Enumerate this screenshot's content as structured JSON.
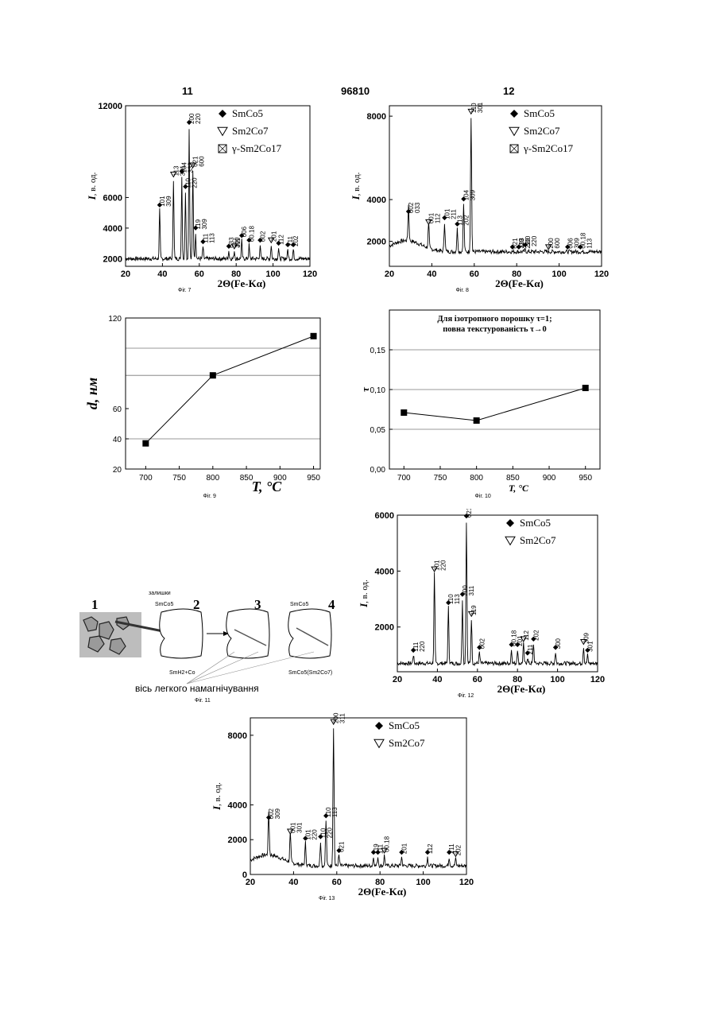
{
  "header": {
    "left": "11",
    "center": "96810",
    "right": "12"
  },
  "xrd_common": {
    "ylabel_prefix": "I",
    "ylabel_units": ", в. од.",
    "xlabel": "2Θ(Fe-Kα)",
    "legend": {
      "smco5": "SmCo5",
      "sm2co7": "Sm2Co7",
      "sm2co17": "γ-Sm2Co17"
    }
  },
  "chart_data": [
    {
      "id": "fig7",
      "type": "line",
      "caption": "Фіг. 7",
      "xlim": [
        20,
        120
      ],
      "ylim": [
        1500,
        12000
      ],
      "yticks": [
        2000,
        4000,
        6000,
        12000
      ],
      "xticks": [
        20,
        40,
        60,
        80,
        100,
        120
      ],
      "peaks": [
        [
          38.5,
          5200
        ],
        [
          46,
          7200
        ],
        [
          50.5,
          7400
        ],
        [
          52.5,
          6400
        ],
        [
          54.5,
          10600
        ],
        [
          56.5,
          7800
        ],
        [
          58,
          3700
        ],
        [
          62,
          2800
        ],
        [
          76,
          2500
        ],
        [
          79,
          2500
        ],
        [
          83,
          3200
        ],
        [
          87,
          2900
        ],
        [
          93,
          2900
        ],
        [
          99,
          2900
        ],
        [
          103,
          2700
        ],
        [
          108,
          2600
        ],
        [
          111,
          2600
        ]
      ],
      "labels": [
        "101",
        "113",
        "104",
        "110",
        "200",
        "021",
        "119",
        "111",
        "033",
        "300",
        "006",
        "00.18",
        "002",
        "201",
        "112",
        "211",
        "202",
        "309",
        "301",
        "333",
        "220",
        "220",
        "600",
        "309",
        "113",
        "311"
      ],
      "baseline": 2000
    },
    {
      "id": "fig8",
      "type": "line",
      "caption": "Фіг. 8",
      "xlim": [
        20,
        120
      ],
      "ylim": [
        800,
        8500
      ],
      "yticks": [
        2000,
        4000,
        8000
      ],
      "xticks": [
        20,
        40,
        60,
        80,
        100,
        120
      ],
      "peaks": [
        [
          29,
          3200
        ],
        [
          38.5,
          2700
        ],
        [
          46,
          2900
        ],
        [
          52,
          2600
        ],
        [
          55,
          3800
        ],
        [
          58.5,
          8000
        ],
        [
          78,
          1500
        ],
        [
          81,
          1500
        ],
        [
          84,
          1600
        ],
        [
          95,
          1500
        ],
        [
          104,
          1500
        ],
        [
          110,
          1500
        ]
      ],
      "labels": [
        "002",
        "001",
        "101",
        "113",
        "104",
        "110",
        "021",
        "119",
        "300",
        "200",
        "006",
        "00.18",
        "033",
        "112",
        "211",
        "202",
        "309",
        "301",
        "333",
        "220",
        "220",
        "600",
        "309",
        "113"
      ],
      "baseline": 1500
    },
    {
      "id": "fig9",
      "type": "line",
      "caption": "Фіг. 9",
      "xlabel": "T, °C",
      "ylabel": "d, нм",
      "x": [
        700,
        800,
        950
      ],
      "y": [
        37,
        82,
        108
      ],
      "xlim": [
        670,
        960
      ],
      "ylim": [
        20,
        120
      ],
      "yticks": [
        20,
        40,
        60,
        120
      ],
      "xticks": [
        700,
        750,
        800,
        850,
        900,
        950
      ],
      "hlines": [
        40,
        82,
        100
      ]
    },
    {
      "id": "fig10",
      "type": "line",
      "caption": "Фіг. 10",
      "xlabel": "T, °C",
      "ylabel": "τ",
      "annotation": [
        "Для ізотропного порошку τ=1;",
        "повна текстурованість τ→0"
      ],
      "x": [
        700,
        800,
        950
      ],
      "y": [
        0.071,
        0.061,
        0.102
      ],
      "xlim": [
        680,
        970
      ],
      "ylim": [
        0,
        0.2
      ],
      "yticks": [
        "0,00",
        "0,05",
        "0,10",
        "0,15"
      ],
      "ytick_vals": [
        0,
        0.05,
        0.1,
        0.15
      ],
      "xticks": [
        700,
        750,
        800,
        850,
        900,
        950
      ],
      "hlines": [
        0.05,
        0.1,
        0.15
      ]
    },
    {
      "id": "fig12",
      "type": "line",
      "caption": "Фіг. 12",
      "xlim": [
        20,
        120
      ],
      "ylim": [
        400,
        6000
      ],
      "yticks": [
        2000,
        4000,
        6000
      ],
      "xticks": [
        20,
        40,
        60,
        80,
        100,
        120
      ],
      "peaks": [
        [
          28,
          1000
        ],
        [
          38.5,
          3900
        ],
        [
          45.5,
          2700
        ],
        [
          52.5,
          3000
        ],
        [
          54.5,
          5800
        ],
        [
          57,
          2300
        ],
        [
          61,
          1100
        ],
        [
          77,
          1200
        ],
        [
          80,
          1200
        ],
        [
          83,
          1400
        ],
        [
          85,
          900
        ],
        [
          88,
          1400
        ],
        [
          99,
          1100
        ],
        [
          113,
          1300
        ],
        [
          115,
          1000
        ]
      ],
      "labels": [
        "111",
        "101",
        "110",
        "200",
        "021",
        "119",
        "002",
        "00.18",
        "201",
        "112",
        "211",
        "202",
        "300",
        "309",
        "301",
        "220",
        "220",
        "113",
        "311"
      ],
      "baseline": 700
    },
    {
      "id": "fig13",
      "type": "line",
      "caption": "Фіг. 13",
      "xlim": [
        20,
        120
      ],
      "ylim": [
        0,
        9000
      ],
      "yticks": [
        0,
        2000,
        4000,
        8000
      ],
      "xticks": [
        20,
        40,
        60,
        80,
        100,
        120
      ],
      "peaks": [
        [
          28.5,
          3000
        ],
        [
          38.5,
          2200
        ],
        [
          45.5,
          1800
        ],
        [
          52.5,
          1900
        ],
        [
          55,
          3100
        ],
        [
          58.5,
          8500
        ],
        [
          61,
          1100
        ],
        [
          77,
          1000
        ],
        [
          79,
          1000
        ],
        [
          82,
          1100
        ],
        [
          90,
          1000
        ],
        [
          102,
          1000
        ],
        [
          112,
          1000
        ],
        [
          115,
          900
        ]
      ],
      "labels": [
        "002",
        "001",
        "101",
        "110",
        "110",
        "200",
        "021",
        "119",
        "111",
        "00.18",
        "201",
        "112",
        "211",
        "202",
        "309",
        "301",
        "220",
        "220",
        "113",
        "311"
      ],
      "baseline": 500
    }
  ],
  "fig11": {
    "caption": "Фіг. 11",
    "numbers": [
      "1",
      "2",
      "3",
      "4"
    ],
    "label_remnants": "залишки",
    "label_smco5": "SmCo5",
    "label_smh2co": "SmH2+Co",
    "label_smco5_4": "SmCo5",
    "label_smco5_sm2co7": "SmCo5(Sm2Co7)",
    "axis_label": "вісь легкого намагнічування"
  }
}
